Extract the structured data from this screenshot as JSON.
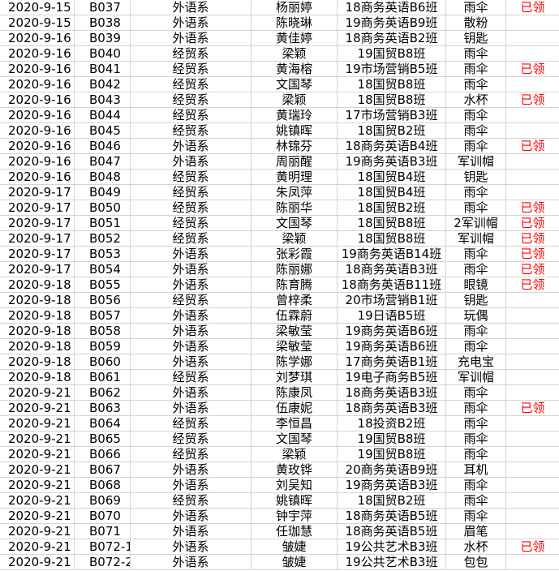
{
  "status_color": "#ff0000",
  "rows": [
    [
      "2020-9-15",
      "B037",
      "外语系",
      "杨丽婷",
      "18商务英语B6班",
      "雨伞",
      "已领"
    ],
    [
      "2020-9-15",
      "B038",
      "外语系",
      "陈晓琳",
      "19商务英语B9班",
      "散粉",
      ""
    ],
    [
      "2020-9-16",
      "B039",
      "外语系",
      "黄佳婷",
      "18商务英语B2班",
      "钥匙",
      ""
    ],
    [
      "2020-9-16",
      "B040",
      "经贸系",
      "梁颖",
      "19国贸B8班",
      "雨伞",
      ""
    ],
    [
      "2020-9-16",
      "B041",
      "经贸系",
      "黄海榕",
      "19市场营销B5班",
      "雨伞",
      "已领"
    ],
    [
      "2020-9-16",
      "B042",
      "经贸系",
      "文国琴",
      "18国贸B8班",
      "雨伞",
      ""
    ],
    [
      "2020-9-16",
      "B043",
      "经贸系",
      "梁颖",
      "18国贸B8班",
      "水杯",
      "已领"
    ],
    [
      "2020-9-16",
      "B044",
      "经贸系",
      "黄瑞玲",
      "17市场营销B3班",
      "雨伞",
      ""
    ],
    [
      "2020-9-16",
      "B045",
      "经贸系",
      "姚镇晖",
      "18国贸B2班",
      "雨伞",
      ""
    ],
    [
      "2020-9-16",
      "B046",
      "外语系",
      "林锦芬",
      "18商务英语B4班",
      "雨伞",
      "已领"
    ],
    [
      "2020-9-16",
      "B047",
      "外语系",
      "周丽醒",
      "19商务英语B3班",
      "军训帽",
      ""
    ],
    [
      "2020-9-16",
      "B048",
      "经贸系",
      "黄明理",
      "18国贸B4班",
      "钥匙",
      ""
    ],
    [
      "2020-9-17",
      "B049",
      "经贸系",
      "朱凤萍",
      "18国贸B4班",
      "雨伞",
      ""
    ],
    [
      "2020-9-17",
      "B050",
      "经贸系",
      "陈丽华",
      "18国贸B2班",
      "雨伞",
      "已领"
    ],
    [
      "2020-9-17",
      "B051",
      "经贸系",
      "文国琴",
      "18国贸B8班",
      "2军训帽",
      "已领"
    ],
    [
      "2020-9-17",
      "B052",
      "经贸系",
      "梁颖",
      "18国贸B8班",
      "军训帽",
      "已领"
    ],
    [
      "2020-9-17",
      "B053",
      "外语系",
      "张彩霞",
      "19商务英语B14班",
      "雨伞",
      "已领"
    ],
    [
      "2020-9-17",
      "B054",
      "外语系",
      "陈丽娜",
      "18商务英语B3班",
      "雨伞",
      "已领"
    ],
    [
      "2020-9-18",
      "B055",
      "外语系",
      "陈育腾",
      "18商务英语B11班",
      "眼镜",
      "已领"
    ],
    [
      "2020-9-18",
      "B056",
      "经贸系",
      "曾梓柔",
      "20市场营销B1班",
      "钥匙",
      ""
    ],
    [
      "2020-9-18",
      "B057",
      "外语系",
      "伍霖蔚",
      "19日语B5班",
      "玩偶",
      ""
    ],
    [
      "2020-9-18",
      "B058",
      "外语系",
      "梁敏莹",
      "19商务英语B6班",
      "雨伞",
      ""
    ],
    [
      "2020-9-18",
      "B059",
      "外语系",
      "梁敏莹",
      "19商务英语B6班",
      "雨伞",
      ""
    ],
    [
      "2020-9-18",
      "B060",
      "外语系",
      "陈学娜",
      "17商务英语B1班",
      "充电宝",
      ""
    ],
    [
      "2020-9-18",
      "B061",
      "经贸系",
      "刘梦琪",
      "19电子商务B5班",
      "军训帽",
      ""
    ],
    [
      "2020-9-21",
      "B062",
      "外语系",
      "陈康凤",
      "18商务英语B3班",
      "雨伞",
      ""
    ],
    [
      "2020-9-21",
      "B063",
      "外语系",
      "伍康妮",
      "18商务英语B3班",
      "雨伞",
      "已领"
    ],
    [
      "2020-9-21",
      "B064",
      "经贸系",
      "李恒昌",
      "18投资B2班",
      "雨伞",
      ""
    ],
    [
      "2020-9-21",
      "B065",
      "经贸系",
      "文国琴",
      "19国贸B8班",
      "雨伞",
      ""
    ],
    [
      "2020-9-21",
      "B066",
      "经贸系",
      "梁颖",
      "19国贸B8班",
      "雨伞",
      ""
    ],
    [
      "2020-9-21",
      "B067",
      "外语系",
      "黄玫铧",
      "20商务英语B9班",
      "耳机",
      ""
    ],
    [
      "2020-9-21",
      "B068",
      "外语系",
      "刘吴知",
      "19商务英语B3班",
      "雨伞",
      ""
    ],
    [
      "2020-9-21",
      "B069",
      "经贸系",
      "姚镇晖",
      "18国贸B2班",
      "雨伞",
      ""
    ],
    [
      "2020-9-21",
      "B070",
      "外语系",
      "钟宇萍",
      "18商务英语B5班",
      "雨伞",
      ""
    ],
    [
      "2020-9-21",
      "B071",
      "外语系",
      "任珈慧",
      "18商务英语B5班",
      "眉笔",
      ""
    ],
    [
      "2020-9-21",
      "B072-1",
      "外语系",
      "皱婕",
      "19公共艺术B3班",
      "水杯",
      "已领"
    ],
    [
      "2020-9-21",
      "B072-2",
      "外语系",
      "皱婕",
      "19公共艺术B3班",
      "包包",
      ""
    ]
  ]
}
